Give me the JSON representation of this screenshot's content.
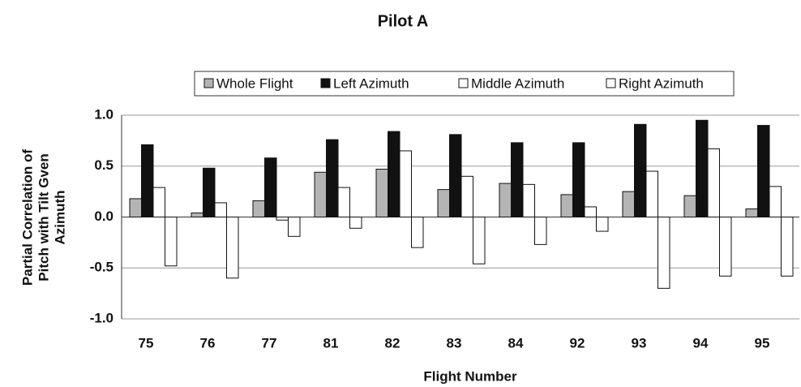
{
  "chart_data": {
    "type": "bar",
    "title": "Pilot A",
    "x_label": "Flight Number",
    "y_label": [
      "Partial Correlation of",
      "Pitch with Tilt  Gven",
      "Azimuth"
    ],
    "categories": [
      "75",
      "76",
      "77",
      "81",
      "82",
      "83",
      "84",
      "92",
      "93",
      "94",
      "95"
    ],
    "series": [
      {
        "name": "Whole Flight",
        "color": "#b4b4b4",
        "values": [
          0.18,
          0.04,
          0.16,
          0.44,
          0.47,
          0.27,
          0.33,
          0.22,
          0.25,
          0.21,
          0.08
        ]
      },
      {
        "name": "Left Azimuth",
        "color": "#111111",
        "values": [
          0.71,
          0.48,
          0.58,
          0.76,
          0.84,
          0.81,
          0.73,
          0.73,
          0.91,
          0.95,
          0.9
        ]
      },
      {
        "name": "Middle Azimuth",
        "color": "#ffffff",
        "values": [
          0.29,
          0.14,
          -0.03,
          0.29,
          0.65,
          0.4,
          0.32,
          0.1,
          0.45,
          0.67,
          0.3
        ]
      },
      {
        "name": "Right Azimuth",
        "color": "#ffffff",
        "values": [
          -0.48,
          -0.6,
          -0.19,
          -0.11,
          -0.3,
          -0.46,
          -0.27,
          -0.14,
          -0.7,
          -0.58,
          -0.58
        ]
      }
    ],
    "ylim": [
      -1,
      1
    ],
    "yticks": [
      {
        "value": 1,
        "label": "1.0"
      },
      0.5,
      {
        "value": 0,
        "label": "0.0"
      },
      -0.5,
      {
        "value": -1,
        "label": "-1.0"
      }
    ],
    "grid": true,
    "legend": "top"
  }
}
